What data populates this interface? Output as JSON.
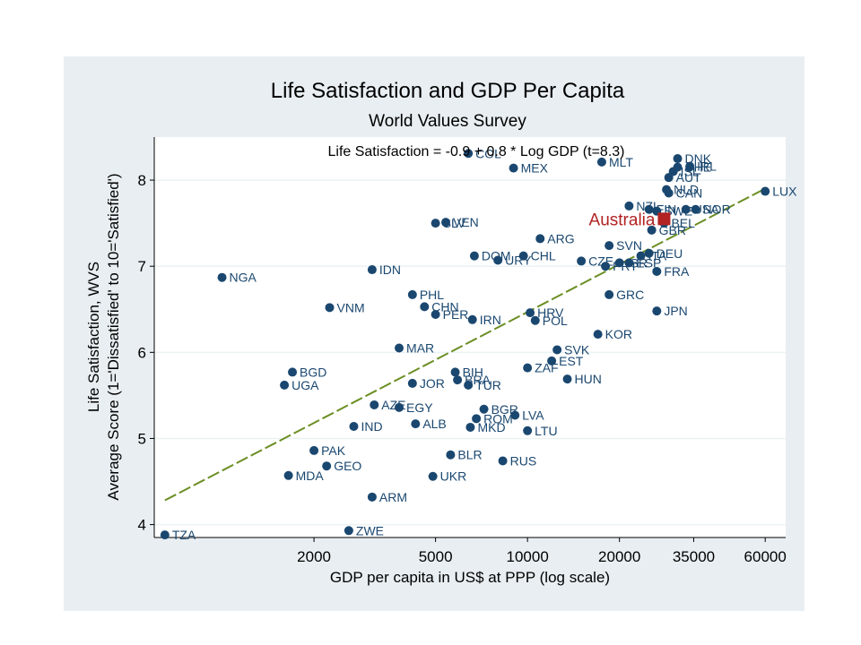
{
  "chart_data": {
    "type": "scatter",
    "title": "Life Satisfaction and GDP Per Capita",
    "subtitle": "World Values Survey",
    "xlabel": "GDP per capita in US$ at PPP (log scale)",
    "ylabel_line1": "Life Satisfaction, WVS",
    "ylabel_line2": "Average Score (1='Dissatisfied' to 10='Satisfied')",
    "annotation": "Life Satisfaction = -0.9 + 0.8 * Log GDP (t=8.3)",
    "x_scale": "log",
    "xlim": [
      600,
      70000
    ],
    "ylim": [
      3.85,
      8.5
    ],
    "x_ticks": [
      2000,
      5000,
      10000,
      20000,
      35000,
      60000
    ],
    "y_ticks": [
      4,
      5,
      6,
      7,
      8
    ],
    "grid": "horizontal",
    "legend": "none",
    "colors": {
      "points": "#1a476f",
      "highlight": "#b22222",
      "fit_line": "#6b8e23",
      "plot_bg": "#ffffff",
      "outer_bg": "#e8eef2"
    },
    "fit": {
      "intercept": -0.9,
      "slope": 0.8,
      "x_from": 650,
      "x_to": 60000
    },
    "highlight": {
      "label": "Australia",
      "x": 28000,
      "y": 7.55
    },
    "points": [
      {
        "label": "TZA",
        "x": 650,
        "y": 3.88
      },
      {
        "label": "NGA",
        "x": 1000,
        "y": 6.87
      },
      {
        "label": "UGA",
        "x": 1600,
        "y": 5.62
      },
      {
        "label": "BGD",
        "x": 1700,
        "y": 5.77
      },
      {
        "label": "MDA",
        "x": 1650,
        "y": 4.57
      },
      {
        "label": "PAK",
        "x": 2000,
        "y": 4.86
      },
      {
        "label": "GEO",
        "x": 2200,
        "y": 4.68
      },
      {
        "label": "VNM",
        "x": 2250,
        "y": 6.52
      },
      {
        "label": "IND",
        "x": 2700,
        "y": 5.14
      },
      {
        "label": "ZWE",
        "x": 2600,
        "y": 3.93
      },
      {
        "label": "ARM",
        "x": 3100,
        "y": 4.32
      },
      {
        "label": "AZE",
        "x": 3150,
        "y": 5.39
      },
      {
        "label": "IDN",
        "x": 3100,
        "y": 6.96
      },
      {
        "label": "MAR",
        "x": 3800,
        "y": 6.05
      },
      {
        "label": "EGY",
        "x": 3800,
        "y": 5.36
      },
      {
        "label": "PHL",
        "x": 4200,
        "y": 6.67
      },
      {
        "label": "JOR",
        "x": 4200,
        "y": 5.64
      },
      {
        "label": "ALB",
        "x": 4300,
        "y": 5.17
      },
      {
        "label": "CHN",
        "x": 4600,
        "y": 6.53
      },
      {
        "label": "PER",
        "x": 5000,
        "y": 6.44
      },
      {
        "label": "SLV",
        "x": 5000,
        "y": 7.5
      },
      {
        "label": "VEN",
        "x": 5400,
        "y": 7.51
      },
      {
        "label": "BIH",
        "x": 5800,
        "y": 5.77
      },
      {
        "label": "UKR",
        "x": 4900,
        "y": 4.56
      },
      {
        "label": "BLR",
        "x": 5600,
        "y": 4.81
      },
      {
        "label": "BRA",
        "x": 5900,
        "y": 5.68
      },
      {
        "label": "TUR",
        "x": 6400,
        "y": 5.62
      },
      {
        "label": "COL",
        "x": 6400,
        "y": 8.31
      },
      {
        "label": "DOM",
        "x": 6700,
        "y": 7.12
      },
      {
        "label": "IRN",
        "x": 6600,
        "y": 6.38
      },
      {
        "label": "ROM",
        "x": 6800,
        "y": 5.23
      },
      {
        "label": "MKD",
        "x": 6500,
        "y": 5.13
      },
      {
        "label": "BGR",
        "x": 7200,
        "y": 5.34
      },
      {
        "label": "URY",
        "x": 8000,
        "y": 7.07
      },
      {
        "label": "CHL",
        "x": 9700,
        "y": 7.12
      },
      {
        "label": "MEX",
        "x": 9000,
        "y": 8.14
      },
      {
        "label": "RUS",
        "x": 8300,
        "y": 4.74
      },
      {
        "label": "LVA",
        "x": 9100,
        "y": 5.27
      },
      {
        "label": "LTU",
        "x": 10000,
        "y": 5.09
      },
      {
        "label": "ZAF",
        "x": 10000,
        "y": 5.82
      },
      {
        "label": "HRV",
        "x": 10200,
        "y": 6.46
      },
      {
        "label": "POL",
        "x": 10600,
        "y": 6.37
      },
      {
        "label": "ARG",
        "x": 11000,
        "y": 7.32
      },
      {
        "label": "EST",
        "x": 12000,
        "y": 5.9
      },
      {
        "label": "SVK",
        "x": 12500,
        "y": 6.03
      },
      {
        "label": "HUN",
        "x": 13500,
        "y": 5.69
      },
      {
        "label": "CZE",
        "x": 15000,
        "y": 7.06
      },
      {
        "label": "KOR",
        "x": 17000,
        "y": 6.21
      },
      {
        "label": "MLT",
        "x": 17500,
        "y": 8.21
      },
      {
        "label": "PRT",
        "x": 18000,
        "y": 7.0
      },
      {
        "label": "SVN",
        "x": 18500,
        "y": 7.24
      },
      {
        "label": "GRC",
        "x": 18500,
        "y": 6.67
      },
      {
        "label": "ISR",
        "x": 20000,
        "y": 7.04
      },
      {
        "label": "ESP",
        "x": 21500,
        "y": 7.04
      },
      {
        "label": "NZL",
        "x": 21500,
        "y": 7.7
      },
      {
        "label": "ITA",
        "x": 23500,
        "y": 7.12
      },
      {
        "label": "DEU",
        "x": 25000,
        "y": 7.15
      },
      {
        "label": "FRA",
        "x": 26500,
        "y": 6.94
      },
      {
        "label": "JPN",
        "x": 26500,
        "y": 6.48
      },
      {
        "label": "GBR",
        "x": 25500,
        "y": 7.42
      },
      {
        "label": "FIN",
        "x": 25000,
        "y": 7.66
      },
      {
        "label": "SWE",
        "x": 26500,
        "y": 7.64
      },
      {
        "label": "BEL",
        "x": 28000,
        "y": 7.5
      },
      {
        "label": "CAN",
        "x": 29000,
        "y": 7.85
      },
      {
        "label": "NLD",
        "x": 28500,
        "y": 7.89
      },
      {
        "label": "AUT",
        "x": 29000,
        "y": 8.03
      },
      {
        "label": "ISL",
        "x": 30000,
        "y": 8.1
      },
      {
        "label": "CHE",
        "x": 31000,
        "y": 8.15
      },
      {
        "label": "DNK",
        "x": 31000,
        "y": 8.25
      },
      {
        "label": "IRL",
        "x": 34000,
        "y": 8.16
      },
      {
        "label": "USA",
        "x": 33000,
        "y": 7.66
      },
      {
        "label": "NOR",
        "x": 35500,
        "y": 7.66
      },
      {
        "label": "LUX",
        "x": 60000,
        "y": 7.87
      }
    ]
  }
}
